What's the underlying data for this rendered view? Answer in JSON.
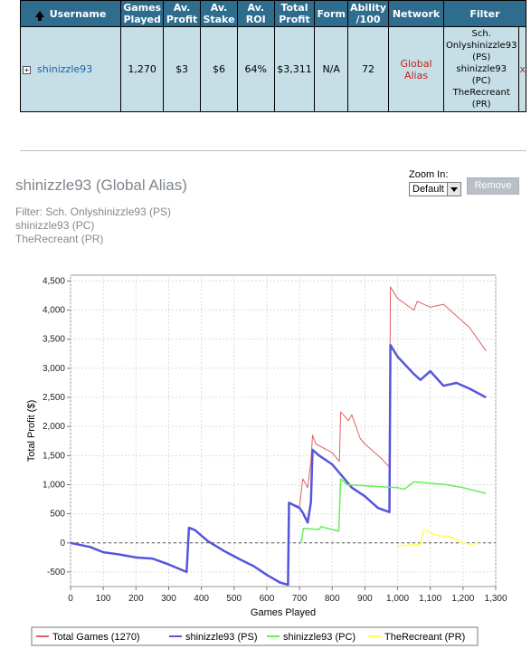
{
  "table": {
    "headers": [
      "Username",
      "Games Played",
      "Av. Profit",
      "Av. Stake",
      "Av. ROI",
      "Total Profit",
      "Form",
      "Ability /100",
      "Network",
      "Filter"
    ],
    "row": {
      "username": "shinizzle93",
      "games_played": "1,270",
      "av_profit": "$3",
      "av_stake": "$6",
      "av_roi": "64%",
      "total_profit": "$3,311",
      "form": "N/A",
      "ability": "72",
      "network": "Global Alias",
      "filter": "Sch. Onlyshinizzle93 (PS) shinizzle93 (PC) TheRecreant (PR)",
      "close": "x"
    }
  },
  "chart_header": {
    "title": "shinizzle93 (Global Alias)",
    "filter_lines": [
      "Filter: Sch. Onlyshinizzle93 (PS)",
      "shinizzle93 (PC)",
      "TheRecreant (PR)"
    ]
  },
  "zoom": {
    "label": "Zoom In:",
    "selected": "Default",
    "remove_label": "Remove"
  },
  "colors": {
    "header_bg": "#2e6d8e",
    "row_bg": "#c6dfe6",
    "total": "#e06060",
    "ps": "#5555dd",
    "pc": "#66ee55",
    "pr": "#ffff55"
  },
  "chart_data": {
    "type": "line",
    "xlabel": "Games Played",
    "ylabel": "Total Profit ($)",
    "xlim": [
      0,
      1300
    ],
    "ylim": [
      -750,
      4600
    ],
    "xticks": [
      "0",
      "100",
      "200",
      "300",
      "400",
      "500",
      "600",
      "700",
      "800",
      "900",
      "1,000",
      "1,100",
      "1,200",
      "1,300"
    ],
    "yticks": [
      "-500",
      "0",
      "500",
      "1,000",
      "1,500",
      "2,000",
      "2,500",
      "3,000",
      "3,500",
      "4,000",
      "4,500"
    ],
    "legend": "bottom",
    "grid": true,
    "series": [
      {
        "name": "Total Games (1270)",
        "color": "#e06060",
        "x": [
          0,
          60,
          100,
          150,
          200,
          250,
          300,
          355,
          362,
          380,
          420,
          470,
          520,
          560,
          600,
          640,
          665,
          668,
          700,
          710,
          725,
          735,
          740,
          750,
          800,
          822,
          826,
          850,
          860,
          885,
          900,
          950,
          975,
          978,
          1000,
          1050,
          1060,
          1100,
          1140,
          1180,
          1220,
          1270
        ],
        "y": [
          0,
          -70,
          -160,
          -200,
          -250,
          -270,
          -370,
          -500,
          260,
          220,
          30,
          -140,
          -290,
          -400,
          -550,
          -680,
          -720,
          690,
          620,
          1100,
          950,
          1400,
          1850,
          1700,
          1550,
          1400,
          2250,
          2100,
          2200,
          1800,
          1700,
          1450,
          1300,
          4400,
          4200,
          4000,
          4150,
          4050,
          4100,
          3900,
          3700,
          3300
        ]
      },
      {
        "name": "shinizzle93 (PS)",
        "color": "#5555dd",
        "x": [
          0,
          60,
          100,
          150,
          200,
          250,
          300,
          355,
          362,
          380,
          420,
          470,
          520,
          560,
          600,
          640,
          665,
          668,
          700,
          710,
          725,
          735,
          740,
          760,
          800,
          830,
          860,
          900,
          940,
          975,
          978,
          1000,
          1050,
          1070,
          1100,
          1140,
          1180,
          1220,
          1270
        ],
        "y": [
          0,
          -70,
          -160,
          -200,
          -250,
          -270,
          -370,
          -500,
          260,
          220,
          30,
          -140,
          -290,
          -400,
          -550,
          -680,
          -720,
          690,
          600,
          520,
          350,
          700,
          1600,
          1500,
          1350,
          1150,
          950,
          800,
          600,
          530,
          3400,
          3200,
          2900,
          2800,
          2950,
          2700,
          2750,
          2650,
          2500
        ]
      },
      {
        "name": "shinizzle93 (PC)",
        "color": "#66ee55",
        "x": [
          705,
          712,
          760,
          766,
          820,
          826,
          845,
          1000,
          1020,
          1050,
          1150,
          1200,
          1270
        ],
        "y": [
          0,
          250,
          230,
          280,
          200,
          1100,
          1000,
          950,
          920,
          1050,
          1000,
          950,
          850
        ]
      },
      {
        "name": "TheRecreant (PR)",
        "color": "#ffff55",
        "x": [
          1000,
          1050,
          1070,
          1080,
          1120,
          1130,
          1160,
          1200,
          1220,
          1250
        ],
        "y": [
          -50,
          -30,
          -20,
          230,
          130,
          120,
          110,
          0,
          -20,
          -10
        ]
      }
    ]
  }
}
